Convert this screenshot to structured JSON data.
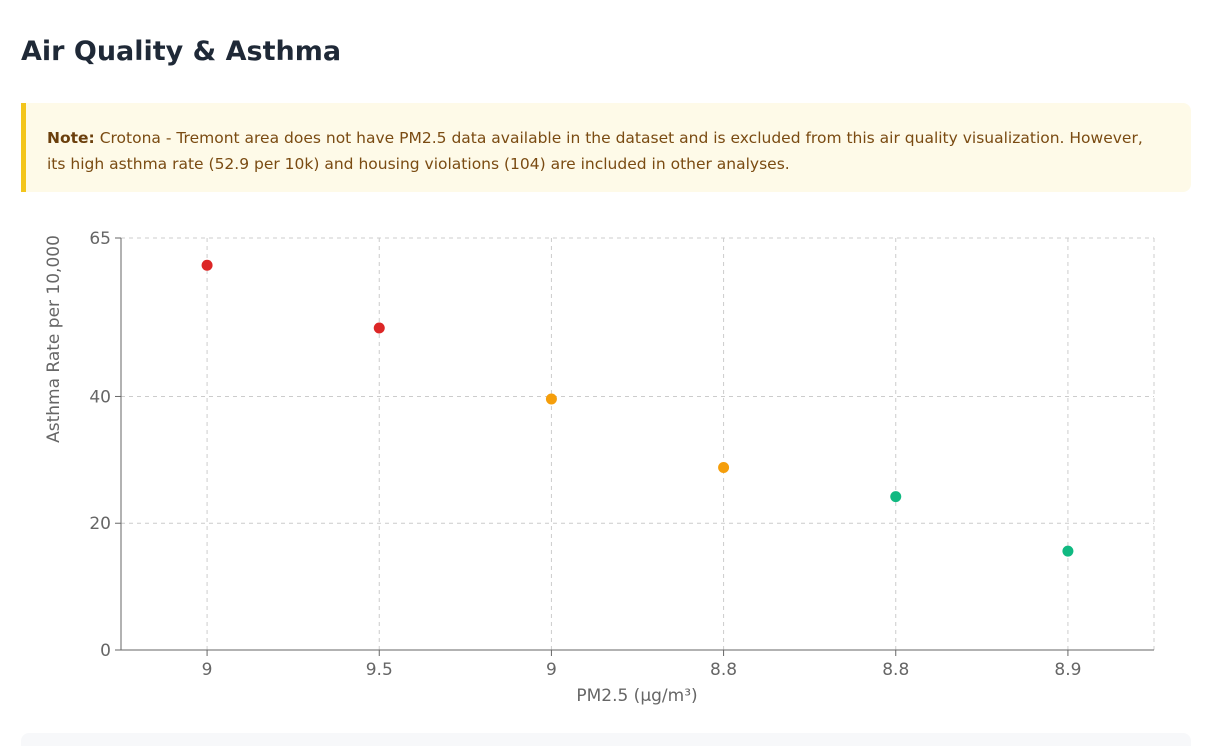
{
  "page": {
    "title": "Air Quality & Asthma"
  },
  "note": {
    "label": "Note:",
    "text": "Crotona - Tremont area does not have PM2.5 data available in the dataset and is excluded from this air quality visualization. However, its high asthma rate (52.9 per 10k) and housing violations (104) are included in other analyses."
  },
  "colors": {
    "high": "#dc2626",
    "medium": "#f59e0b",
    "low": "#10b981",
    "grid": "#cccccc",
    "axis": "#666666"
  },
  "chart_data": {
    "type": "scatter",
    "xlabel": "PM2.5 (µg/m³)",
    "ylabel": "Asthma Rate per 10,000",
    "x_tick_labels": [
      "9",
      "9.5",
      "9",
      "8.8",
      "8.8",
      "8.9"
    ],
    "y_ticks": [
      0,
      20,
      40,
      65
    ],
    "ylim": [
      0,
      65
    ],
    "grid": true,
    "points": [
      {
        "x": "9",
        "y": 60.7,
        "color": "#dc2626"
      },
      {
        "x": "9.5",
        "y": 50.8,
        "color": "#dc2626"
      },
      {
        "x": "9",
        "y": 39.6,
        "color": "#f59e0b"
      },
      {
        "x": "8.8",
        "y": 28.8,
        "color": "#f59e0b"
      },
      {
        "x": "8.8",
        "y": 24.2,
        "color": "#10b981"
      },
      {
        "x": "8.9",
        "y": 15.6,
        "color": "#10b981"
      }
    ]
  }
}
